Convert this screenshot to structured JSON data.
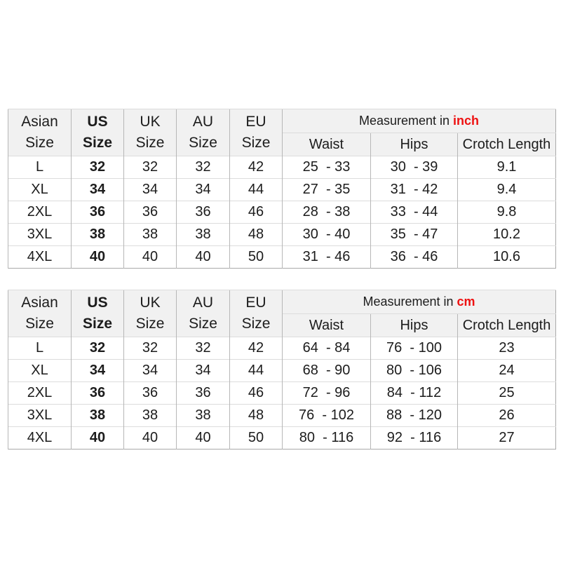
{
  "accent_red": "#ee1111",
  "header_bg": "#f1f1f1",
  "tables": [
    {
      "id": "inch",
      "size_headers": [
        "Asian Size",
        "US Size",
        "UK Size",
        "AU Size",
        "EU Size"
      ],
      "measurement_title": {
        "prefix": "Measurement in ",
        "unit": "inch"
      },
      "measurement_headers": [
        "Waist",
        "Hips",
        "Crotch Length"
      ],
      "column_keys": [
        "asian-size",
        "us-size",
        "uk-size",
        "au-size",
        "eu-size",
        "waist",
        "hips",
        "crotch-length"
      ],
      "rows": [
        [
          "L",
          "32",
          "32",
          "32",
          "42",
          "25  - 33",
          "30  - 39",
          "9.1"
        ],
        [
          "XL",
          "34",
          "34",
          "34",
          "44",
          "27  - 35",
          "31  - 42",
          "9.4"
        ],
        [
          "2XL",
          "36",
          "36",
          "36",
          "46",
          "28  - 38",
          "33  - 44",
          "9.8"
        ],
        [
          "3XL",
          "38",
          "38",
          "38",
          "48",
          "30  - 40",
          "35  - 47",
          "10.2"
        ],
        [
          "4XL",
          "40",
          "40",
          "40",
          "50",
          "31  - 46",
          "36  - 46",
          "10.6"
        ]
      ]
    },
    {
      "id": "cm",
      "size_headers": [
        "Asian Size",
        "US Size",
        "UK Size",
        "AU Size",
        "EU Size"
      ],
      "measurement_title": {
        "prefix": "Measurement in ",
        "unit": "cm"
      },
      "measurement_headers": [
        "Waist",
        "Hips",
        "Crotch Length"
      ],
      "column_keys": [
        "asian-size",
        "us-size",
        "uk-size",
        "au-size",
        "eu-size",
        "waist",
        "hips",
        "crotch-length"
      ],
      "rows": [
        [
          "L",
          "32",
          "32",
          "32",
          "42",
          "64  - 84",
          "76  - 100",
          "23"
        ],
        [
          "XL",
          "34",
          "34",
          "34",
          "44",
          "68  - 90",
          "80  - 106",
          "24"
        ],
        [
          "2XL",
          "36",
          "36",
          "36",
          "46",
          "72  - 96",
          "84  - 112",
          "25"
        ],
        [
          "3XL",
          "38",
          "38",
          "38",
          "48",
          "76  - 102",
          "88  - 120",
          "26"
        ],
        [
          "4XL",
          "40",
          "40",
          "40",
          "50",
          "80  - 116",
          "92  - 116",
          "27"
        ]
      ]
    }
  ],
  "chart_data": [
    {
      "type": "table",
      "title": "Measurement in inch",
      "columns": [
        "Asian Size",
        "US Size",
        "UK Size",
        "AU Size",
        "EU Size",
        "Waist",
        "Hips",
        "Crotch Length"
      ],
      "rows": [
        [
          "L",
          32,
          32,
          32,
          42,
          "25-33",
          "30-39",
          9.1
        ],
        [
          "XL",
          34,
          34,
          34,
          44,
          "27-35",
          "31-42",
          9.4
        ],
        [
          "2XL",
          36,
          36,
          36,
          46,
          "28-38",
          "33-44",
          9.8
        ],
        [
          "3XL",
          38,
          38,
          38,
          48,
          "30-40",
          "35-47",
          10.2
        ],
        [
          "4XL",
          40,
          40,
          40,
          50,
          "31-46",
          "36-46",
          10.6
        ]
      ]
    },
    {
      "type": "table",
      "title": "Measurement in cm",
      "columns": [
        "Asian Size",
        "US Size",
        "UK Size",
        "AU Size",
        "EU Size",
        "Waist",
        "Hips",
        "Crotch Length"
      ],
      "rows": [
        [
          "L",
          32,
          32,
          32,
          42,
          "64-84",
          "76-100",
          23
        ],
        [
          "XL",
          34,
          34,
          34,
          44,
          "68-90",
          "80-106",
          24
        ],
        [
          "2XL",
          36,
          36,
          36,
          46,
          "72-96",
          "84-112",
          25
        ],
        [
          "3XL",
          38,
          38,
          38,
          48,
          "76-102",
          "88-120",
          26
        ],
        [
          "4XL",
          40,
          40,
          40,
          50,
          "80-116",
          "92-116",
          27
        ]
      ]
    }
  ]
}
